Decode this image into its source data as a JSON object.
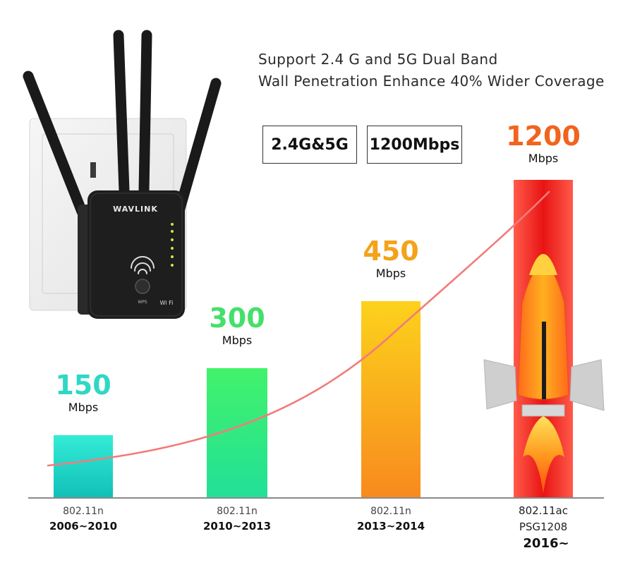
{
  "header": {
    "line1": "Support 2.4 G and 5G  Dual Band",
    "line2": "Wall Penetration Enhance 40% Wider Coverage"
  },
  "specs": {
    "band": "2.4G&5G",
    "speed": "1200Mbps"
  },
  "product": {
    "brand": "WAVLINK",
    "wps_label": "WPS",
    "wifi_badge": "Wi Fi"
  },
  "chart_data": {
    "type": "bar",
    "unit": "Mbps",
    "categories": [
      {
        "standard": "802.11n",
        "years": "2006~2010",
        "extra": ""
      },
      {
        "standard": "802.11n",
        "years": "2010~2013",
        "extra": ""
      },
      {
        "standard": "802.11n",
        "years": "2013~2014",
        "extra": ""
      },
      {
        "standard": "802.11ac",
        "years": "2016~",
        "extra": "PSG1208"
      }
    ],
    "values": [
      150,
      300,
      450,
      1200
    ],
    "colors": [
      "#2ee0c8",
      "#3ef07a",
      "#fca01c",
      "#ee1c1c"
    ],
    "label_colors": [
      "#2ed8c4",
      "#44e06a",
      "#f4a21a",
      "#f0641e"
    ],
    "curve_color": "#f27b7b",
    "grid": false,
    "legend": "none"
  }
}
